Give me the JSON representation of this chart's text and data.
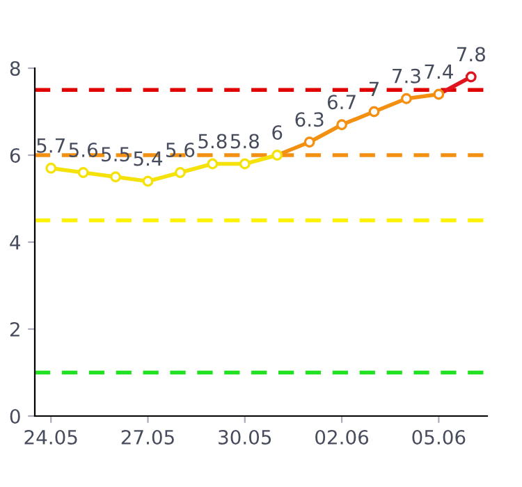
{
  "chart_data": {
    "type": "line",
    "categories": [
      "24.05",
      null,
      null,
      "27.05",
      null,
      null,
      "30.05",
      null,
      null,
      "02.06",
      null,
      null,
      "05.06",
      null
    ],
    "series": [
      {
        "color": "#f5e20a",
        "values": [
          5.7,
          5.6,
          5.5,
          5.4,
          5.6,
          5.8,
          5.8,
          6,
          null,
          null,
          null,
          null,
          null,
          null
        ],
        "value_labels": [
          "5.7",
          "5.6",
          "5.5",
          "5.4",
          "5.6",
          "5.8",
          "5.8",
          "6",
          null,
          null,
          null,
          null,
          null,
          null
        ]
      },
      {
        "color": "#f39012",
        "values": [
          null,
          null,
          null,
          null,
          null,
          null,
          null,
          6,
          6.3,
          6.7,
          7,
          7.3,
          7.4,
          null
        ],
        "value_labels": [
          null,
          null,
          null,
          null,
          null,
          null,
          null,
          null,
          "6.3",
          "6.7",
          "7",
          "7.3",
          "7.4",
          null
        ]
      },
      {
        "color": "#e0141e",
        "values": [
          null,
          null,
          null,
          null,
          null,
          null,
          null,
          null,
          null,
          null,
          null,
          null,
          7.4,
          7.8
        ],
        "value_labels": [
          null,
          null,
          null,
          null,
          null,
          null,
          null,
          null,
          null,
          null,
          null,
          null,
          null,
          "7.8"
        ]
      }
    ],
    "ylim": [
      0,
      8
    ],
    "yticks": [
      0,
      2,
      4,
      6,
      8
    ],
    "ref_lines": [
      {
        "axis": "y",
        "value": 7.5,
        "color": "#e00000",
        "line_style": "dashed"
      },
      {
        "axis": "y",
        "value": 6,
        "color": "#f39012",
        "line_style": "dashed"
      },
      {
        "axis": "y",
        "value": 4.5,
        "color": "#fff200",
        "line_style": "dashed"
      },
      {
        "axis": "y",
        "value": 1,
        "color": "#22e022",
        "line_style": "dashed"
      }
    ],
    "marker": "circle",
    "line_style": "solid",
    "grid": false,
    "legend": false
  }
}
